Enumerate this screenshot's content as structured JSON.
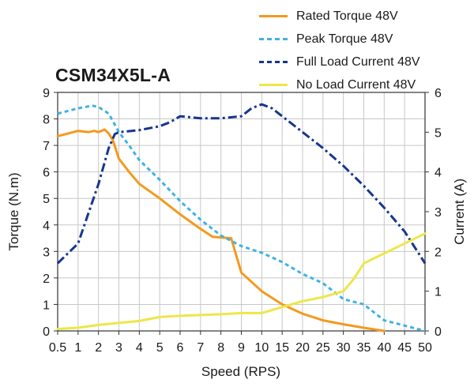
{
  "colors": {
    "rated_torque": "#f39a1e",
    "peak_torque": "#3fb3e3",
    "full_load_current": "#16368f",
    "no_load_current": "#eee64a",
    "grid": "#c8c8c8",
    "axis": "#333333",
    "text": "#1a1a1a"
  },
  "chart_data": {
    "type": "line",
    "title": "CSM34X5L-A",
    "xlabel": "Speed (RPS)",
    "ylabel": "Torque (N.m)",
    "y2label": "Current (A)",
    "x_scale": "categorical-index",
    "categories": [
      "0.5",
      "1",
      "2",
      "3",
      "4",
      "5",
      "6",
      "7",
      "8",
      "9",
      "10",
      "15",
      "20",
      "25",
      "30",
      "35",
      "40",
      "45",
      "50"
    ],
    "ylim": [
      0,
      9
    ],
    "y_ticks": [
      "0",
      "1",
      "2",
      "3",
      "4",
      "5",
      "6",
      "7",
      "8",
      "9"
    ],
    "y2lim": [
      0,
      6
    ],
    "y2_ticks": [
      "0",
      "1",
      "2",
      "3",
      "4",
      "5",
      "6"
    ],
    "grid": true,
    "legend_position": "top-right",
    "series": [
      {
        "name": "Rated Torque 48V",
        "axis": "left",
        "color": "#f39a1e",
        "style": "solid",
        "points": [
          [
            0,
            7.35
          ],
          [
            1,
            7.55
          ],
          [
            1.5,
            7.5
          ],
          [
            1.8,
            7.55
          ],
          [
            2,
            7.5
          ],
          [
            2.3,
            7.6
          ],
          [
            2.5,
            7.45
          ],
          [
            2.7,
            7.2
          ],
          [
            3,
            6.5
          ],
          [
            3.5,
            6.0
          ],
          [
            4,
            5.55
          ],
          [
            5,
            5.0
          ],
          [
            6,
            4.4
          ],
          [
            7,
            3.85
          ],
          [
            7.6,
            3.55
          ],
          [
            8.5,
            3.5
          ],
          [
            9,
            2.2
          ],
          [
            10,
            1.5
          ],
          [
            11,
            1.0
          ],
          [
            12,
            0.65
          ],
          [
            13,
            0.4
          ],
          [
            14,
            0.25
          ],
          [
            15,
            0.12
          ],
          [
            16,
            0.0
          ]
        ]
      },
      {
        "name": "Peak Torque 48V",
        "axis": "left",
        "color": "#3fb3e3",
        "style": "dashed",
        "points": [
          [
            0,
            8.2
          ],
          [
            1,
            8.4
          ],
          [
            1.7,
            8.5
          ],
          [
            2,
            8.45
          ],
          [
            2.5,
            8.2
          ],
          [
            3,
            7.5
          ],
          [
            3.5,
            7.0
          ],
          [
            4,
            6.45
          ],
          [
            5,
            5.7
          ],
          [
            6,
            4.9
          ],
          [
            7,
            4.2
          ],
          [
            8,
            3.6
          ],
          [
            9,
            3.2
          ],
          [
            10,
            2.95
          ],
          [
            11,
            2.6
          ],
          [
            12,
            2.15
          ],
          [
            13,
            1.8
          ],
          [
            14,
            1.2
          ],
          [
            15,
            1.0
          ],
          [
            16,
            0.4
          ],
          [
            17,
            0.2
          ],
          [
            18,
            0.0
          ]
        ]
      },
      {
        "name": "Full Load Current 48V",
        "axis": "right",
        "color": "#16368f",
        "style": "dashdot",
        "points": [
          [
            0,
            1.7
          ],
          [
            1,
            2.2
          ],
          [
            2,
            3.7
          ],
          [
            2.5,
            4.6
          ],
          [
            2.8,
            4.95
          ],
          [
            3,
            5.0
          ],
          [
            4,
            5.05
          ],
          [
            5,
            5.15
          ],
          [
            5.5,
            5.25
          ],
          [
            6,
            5.4
          ],
          [
            7,
            5.35
          ],
          [
            8,
            5.35
          ],
          [
            9,
            5.4
          ],
          [
            9.5,
            5.6
          ],
          [
            10,
            5.7
          ],
          [
            10.5,
            5.6
          ],
          [
            11,
            5.4
          ],
          [
            12,
            5.0
          ],
          [
            13,
            4.6
          ],
          [
            14,
            4.15
          ],
          [
            15,
            3.65
          ],
          [
            16,
            3.1
          ],
          [
            17,
            2.5
          ],
          [
            18,
            1.7
          ]
        ]
      },
      {
        "name": "No Load Current 48V",
        "axis": "right",
        "color": "#eee64a",
        "style": "solid",
        "points": [
          [
            0,
            0.05
          ],
          [
            1,
            0.08
          ],
          [
            2,
            0.15
          ],
          [
            3,
            0.2
          ],
          [
            4,
            0.25
          ],
          [
            5,
            0.35
          ],
          [
            6,
            0.38
          ],
          [
            7,
            0.4
          ],
          [
            8,
            0.42
          ],
          [
            9,
            0.45
          ],
          [
            10,
            0.45
          ],
          [
            11,
            0.6
          ],
          [
            12,
            0.75
          ],
          [
            13,
            0.85
          ],
          [
            14,
            1.0
          ],
          [
            14.5,
            1.3
          ],
          [
            15,
            1.7
          ],
          [
            16,
            1.95
          ],
          [
            17,
            2.2
          ],
          [
            18,
            2.45
          ]
        ]
      }
    ]
  }
}
